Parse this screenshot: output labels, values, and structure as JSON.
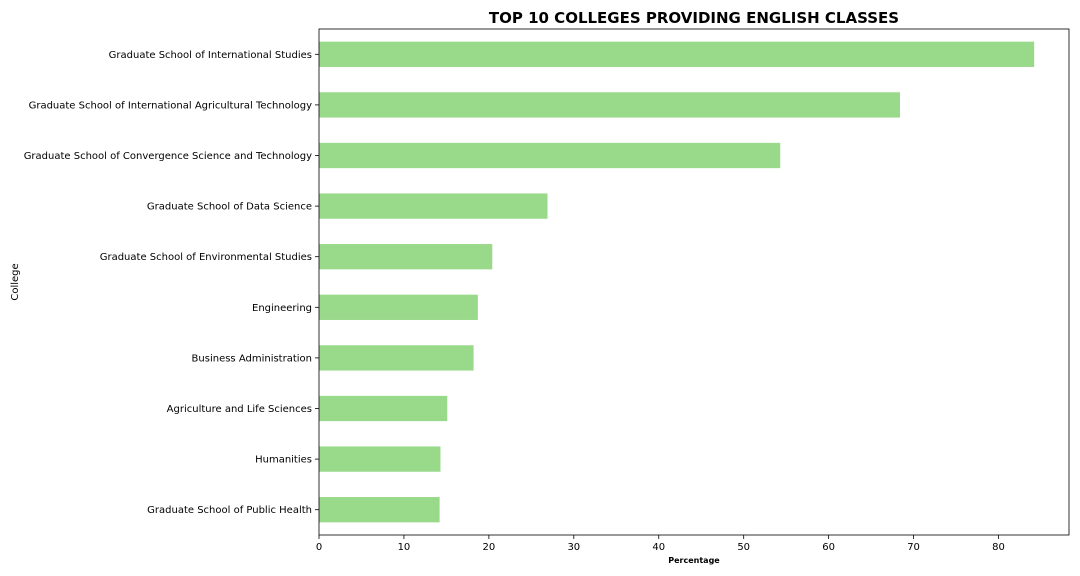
{
  "chart_data": {
    "type": "bar",
    "orientation": "horizontal",
    "title": "TOP 10 COLLEGES PROVIDING ENGLISH CLASSES",
    "xlabel": "Percentage",
    "ylabel": "College",
    "categories": [
      "Graduate School of International Studies",
      "Graduate School of International Agricultural Technology",
      "Graduate School of Convergence Science and Technology",
      "Graduate School of Data Science",
      "Graduate School of Environmental Studies",
      "Engineering",
      "Business Administration",
      "Agriculture and Life Sciences",
      "Humanities",
      "Graduate School of Public Health"
    ],
    "values": [
      84.2,
      68.4,
      54.3,
      26.9,
      20.4,
      18.7,
      18.2,
      15.1,
      14.3,
      14.2
    ],
    "xlim": [
      0,
      88.3
    ],
    "xticks": [
      "0",
      "10",
      "20",
      "30",
      "40",
      "50",
      "60",
      "70",
      "80"
    ],
    "grid": false,
    "bar_color": "#98d98a"
  }
}
